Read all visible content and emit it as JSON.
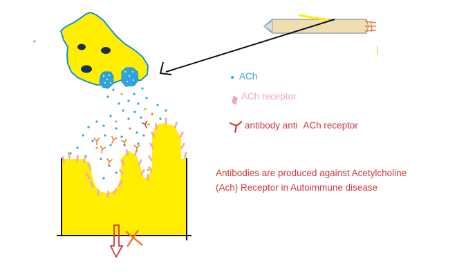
{
  "legend": {
    "ach": "ACh",
    "receptor": "ACh  receptor",
    "antibody_prefix": "antibody anti",
    "antibody_suffix": "ACh receptor"
  },
  "note": {
    "line1": "Antibodies are produced against Acetylcholine",
    "line2": "(Ach) Receptor in Autoimmune disease"
  },
  "colors": {
    "ach": "#2fa4d8",
    "receptor": "#f2a6bd",
    "antibody": "#d0363c",
    "cell": "#ffee00",
    "outline": "#1a8fd0",
    "text_note": "#d0363c",
    "axon": "#efdfb0"
  },
  "icons": [
    "presynaptic-cell",
    "nerve-axon",
    "arrow",
    "ach-dot",
    "receptor-spike",
    "antibody-y",
    "down-arrow",
    "cross-mark"
  ]
}
